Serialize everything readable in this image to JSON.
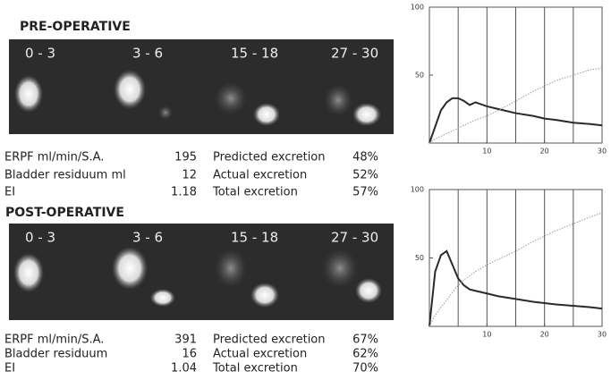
{
  "panels": [
    {
      "title": "PRE-OPERATIVE",
      "frames": [
        "0 - 3",
        "3 - 6",
        "15 - 18",
        "27 - 30"
      ],
      "stats": [
        [
          "ERPF  ml/min/S.A.",
          "195",
          "Predicted excretion",
          "48%"
        ],
        [
          "Bladder residuum ml",
          "12",
          "Actual excretion",
          "52%"
        ],
        [
          "EI",
          "1.18",
          "Total excretion",
          "57%"
        ]
      ],
      "chart": {
        "type": "line",
        "xlim": [
          0,
          30
        ],
        "ylim": [
          0,
          100
        ],
        "xticks": [
          10,
          20,
          30
        ],
        "yticks": [
          50,
          100
        ],
        "xgrid": [
          5,
          10,
          15,
          20,
          25
        ],
        "x": [
          0,
          1,
          2,
          3,
          4,
          5,
          6,
          7,
          8,
          10,
          12,
          15,
          18,
          20,
          22,
          25,
          28,
          30
        ],
        "series": [
          {
            "color": "#2a2a2a",
            "values": [
              0,
              12,
              24,
              30,
              33,
              33,
              31,
              28,
              30,
              27,
              25,
              22,
              20,
              18,
              17,
              15,
              14,
              13
            ]
          },
          {
            "color": "#9a9a9a",
            "values": [
              0,
              3,
              5,
              7,
              9,
              11,
              13,
              15,
              17,
              20,
              24,
              31,
              38,
              42,
              46,
              50,
              54,
              55
            ]
          }
        ]
      }
    },
    {
      "title": "POST-OPERATIVE",
      "frames": [
        "0 - 3",
        "3 - 6",
        "15 - 18",
        "27 - 30"
      ],
      "stats": [
        [
          "ERPF  ml/min/S.A.",
          "391",
          "Predicted excretion",
          "67%"
        ],
        [
          "Bladder residuum",
          "16",
          "Actual excretion",
          "62%"
        ],
        [
          "EI",
          "1.04",
          "Total excretion",
          "70%"
        ]
      ],
      "chart": {
        "type": "line",
        "xlim": [
          0,
          30
        ],
        "ylim": [
          0,
          100
        ],
        "xticks": [
          10,
          20,
          30
        ],
        "yticks": [
          50,
          100
        ],
        "xgrid": [
          5,
          10,
          15,
          20,
          25
        ],
        "x": [
          0,
          1,
          2,
          3,
          4,
          5,
          6,
          7,
          8,
          10,
          12,
          15,
          18,
          20,
          22,
          25,
          28,
          30
        ],
        "series": [
          {
            "color": "#2a2a2a",
            "values": [
              0,
              40,
              52,
              55,
              45,
              35,
              30,
              27,
              26,
              24,
              22,
              20,
              18,
              17,
              16,
              15,
              14,
              13
            ]
          },
          {
            "color": "#9a9a9a",
            "values": [
              0,
              8,
              14,
              19,
              25,
              30,
              34,
              37,
              40,
              45,
              49,
              55,
              62,
              66,
              70,
              75,
              80,
              83
            ]
          }
        ]
      }
    }
  ]
}
